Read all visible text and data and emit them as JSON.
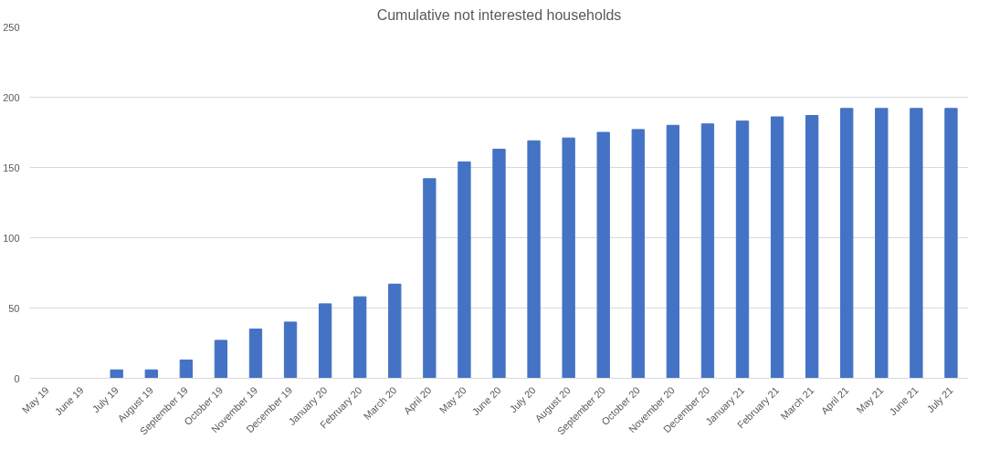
{
  "chart_data": {
    "type": "bar",
    "title": "Cumulative not interested households",
    "categories": [
      "May 19",
      "June 19",
      "July 19",
      "August 19",
      "September 19",
      "October 19",
      "November 19",
      "December 19",
      "January 20",
      "February 20",
      "March 20",
      "April 20",
      "May 20",
      "June 20",
      "July 20",
      "August 20",
      "September 20",
      "October 20",
      "November 20",
      "December 20",
      "January 21",
      "February 21",
      "March 21",
      "April 21",
      "May 21",
      "June 21",
      "July 21"
    ],
    "values": [
      0,
      0,
      6,
      6,
      13,
      27,
      35,
      40,
      53,
      58,
      67,
      142,
      154,
      163,
      169,
      171,
      175,
      177,
      180,
      181,
      183,
      186,
      187,
      192,
      192,
      192,
      192
    ],
    "color": "#4472c4",
    "ylim": [
      0,
      250
    ],
    "yticks": [
      0,
      50,
      100,
      150,
      200,
      250
    ],
    "grid": "y"
  }
}
